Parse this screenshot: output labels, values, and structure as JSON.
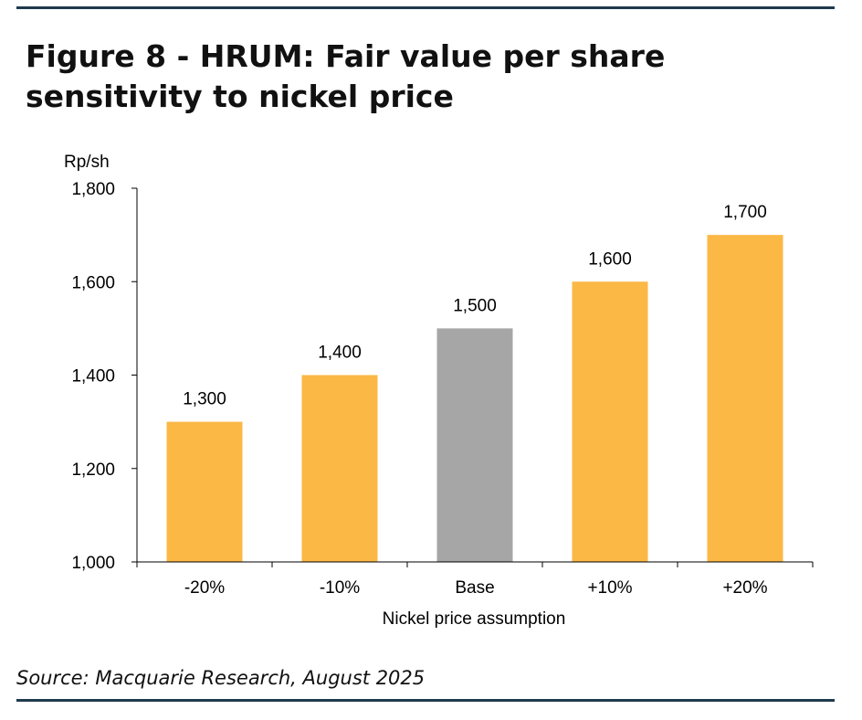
{
  "figure": {
    "title": "Figure 8 - HRUM: Fair value per share sensitivity to nickel price",
    "source": "Source: Macquarie Research, August 2025"
  },
  "chart_data": {
    "type": "bar",
    "categories": [
      "-20%",
      "-10%",
      "Base",
      "+10%",
      "+20%"
    ],
    "values": [
      1300,
      1400,
      1500,
      1600,
      1700
    ],
    "data_labels": [
      "1,300",
      "1,400",
      "1,500",
      "1,600",
      "1,700"
    ],
    "colors": [
      "#fbb845",
      "#fbb845",
      "#a6a6a6",
      "#fbb845",
      "#fbb845"
    ],
    "ylabel": "Rp/sh",
    "xlabel": "Nickel price assumption",
    "ylim": [
      1000,
      1800
    ],
    "yticks": [
      1000,
      1200,
      1400,
      1600,
      1800
    ],
    "ytick_labels": [
      "1,000",
      "1,200",
      "1,400",
      "1,600",
      "1,800"
    ],
    "grid": false,
    "legend": "none"
  }
}
